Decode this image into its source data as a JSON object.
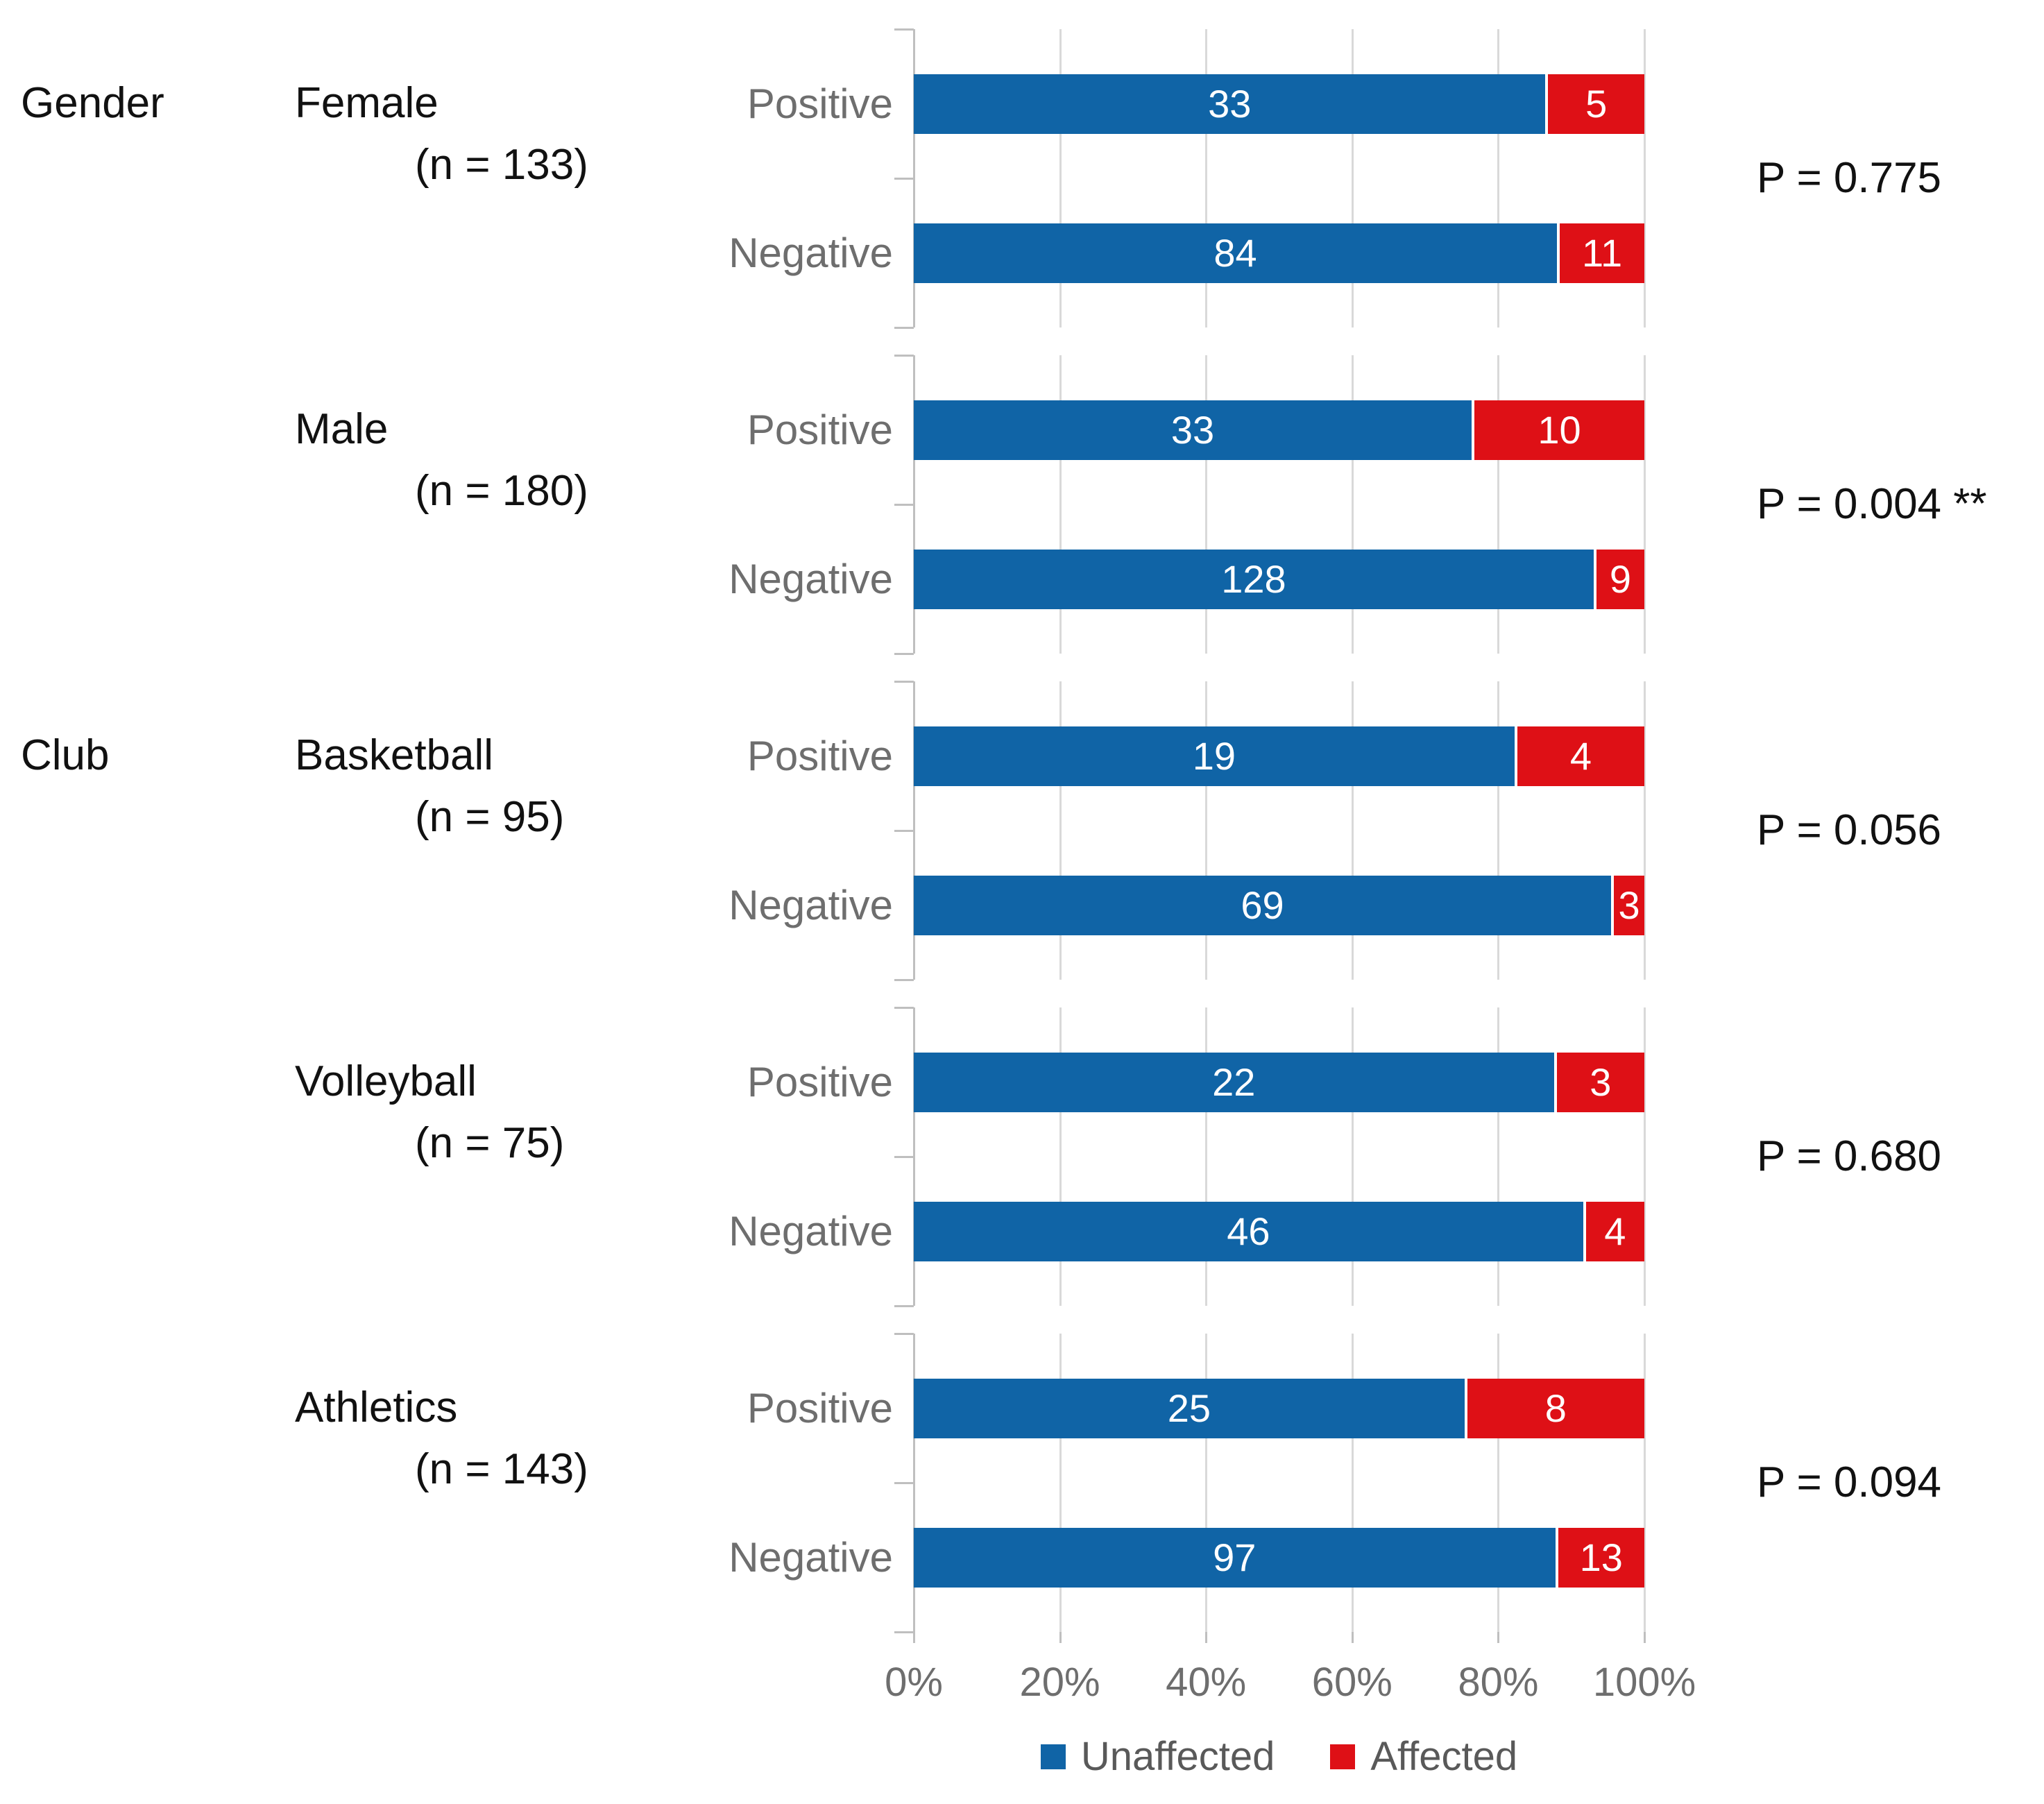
{
  "chart_data": {
    "type": "bar",
    "orientation": "horizontal",
    "stacked_percent": true,
    "series_names": [
      "Unaffected",
      "Affected"
    ],
    "colors": {
      "unaffected": "#1064A6",
      "affected": "#DE1016"
    },
    "x_axis": {
      "ticks": [
        "0%",
        "20%",
        "40%",
        "60%",
        "80%",
        "100%"
      ],
      "range": [
        0,
        100
      ],
      "grid": true
    },
    "legend": {
      "position": "bottom",
      "entries": [
        {
          "label": "Unaffected",
          "color": "#1064A6"
        },
        {
          "label": "Affected",
          "color": "#DE1016"
        }
      ]
    },
    "groups": [
      {
        "section": "Gender",
        "name": "Female",
        "n_label": "(n = 133)",
        "p_value_label": "P = 0.775",
        "rows": [
          {
            "label": "Positive",
            "values": {
              "Unaffected": 33,
              "Affected": 5
            }
          },
          {
            "label": "Negative",
            "values": {
              "Unaffected": 84,
              "Affected": 11
            }
          }
        ]
      },
      {
        "section": null,
        "name": "Male",
        "n_label": "(n = 180)",
        "p_value_label": "P = 0.004 **",
        "rows": [
          {
            "label": "Positive",
            "values": {
              "Unaffected": 33,
              "Affected": 10
            }
          },
          {
            "label": "Negative",
            "values": {
              "Unaffected": 128,
              "Affected": 9
            }
          }
        ]
      },
      {
        "section": "Club",
        "name": "Basketball",
        "n_label": "(n = 95)",
        "p_value_label": "P = 0.056",
        "rows": [
          {
            "label": "Positive",
            "values": {
              "Unaffected": 19,
              "Affected": 4
            }
          },
          {
            "label": "Negative",
            "values": {
              "Unaffected": 69,
              "Affected": 3
            }
          }
        ]
      },
      {
        "section": null,
        "name": "Volleyball",
        "n_label": "(n = 75)",
        "p_value_label": "P = 0.680",
        "rows": [
          {
            "label": "Positive",
            "values": {
              "Unaffected": 22,
              "Affected": 3
            }
          },
          {
            "label": "Negative",
            "values": {
              "Unaffected": 46,
              "Affected": 4
            }
          }
        ]
      },
      {
        "section": null,
        "name": "Athletics",
        "n_label": "(n = 143)",
        "p_value_label": "P = 0.094",
        "rows": [
          {
            "label": "Positive",
            "values": {
              "Unaffected": 25,
              "Affected": 8
            }
          },
          {
            "label": "Negative",
            "values": {
              "Unaffected": 97,
              "Affected": 13
            }
          }
        ]
      }
    ]
  }
}
